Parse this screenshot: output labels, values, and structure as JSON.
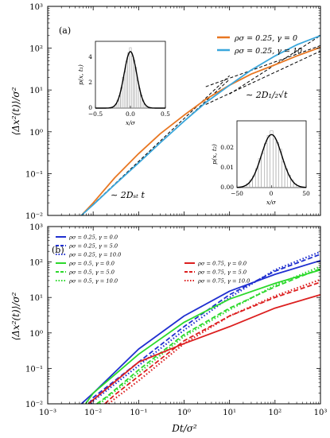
{
  "chart_data": [
    {
      "panel": "(a)",
      "type": "line",
      "xscale": "log",
      "yscale": "log",
      "xlim": [
        0.001,
        1000
      ],
      "ylim": [
        0.01,
        1000
      ],
      "ylabel": "⟨Δx²(t)⟩/σ²",
      "xticks": [
        "",
        "",
        "",
        "",
        "",
        "",
        ""
      ],
      "yticks": [
        "10⁻²",
        "10⁻¹",
        "10⁰",
        "10¹",
        "10²",
        "10³"
      ],
      "legend_position": "top-right",
      "series": [
        {
          "name": "ρσ = 0.25, γ = 0",
          "color": "#e87722",
          "style": "solid",
          "x": [
            0.0055,
            0.01,
            0.03,
            0.1,
            0.3,
            1,
            3,
            10,
            30,
            100,
            300,
            1000
          ],
          "y": [
            0.01,
            0.02,
            0.08,
            0.3,
            0.9,
            2.5,
            6,
            13,
            24,
            40,
            65,
            105
          ]
        },
        {
          "name": "ρσ = 0.25, γ = 10",
          "color": "#3aa7dc",
          "style": "solid",
          "x": [
            0.0055,
            0.01,
            0.03,
            0.1,
            0.3,
            1,
            3,
            10,
            30,
            100,
            300,
            1000
          ],
          "y": [
            0.01,
            0.018,
            0.055,
            0.18,
            0.55,
            1.8,
            5,
            13,
            30,
            65,
            120,
            200
          ]
        }
      ],
      "guides": [
        {
          "kind": "ballistic",
          "x": [
            0.0055,
            10
          ],
          "y": [
            0.01,
            22
          ]
        },
        {
          "kind": "ballistic",
          "x": [
            0.0055,
            10
          ],
          "y": [
            0.01,
            18
          ]
        },
        {
          "kind": "sqrt",
          "x": [
            3,
            1000
          ],
          "y": [
            12,
            115
          ]
        },
        {
          "kind": "sqrt",
          "x": [
            3,
            1000
          ],
          "y": [
            4.5,
            85
          ]
        },
        {
          "kind": "linear",
          "x": [
            10,
            1000
          ],
          "y": [
            8,
            200
          ]
        }
      ],
      "annotations": [
        "∼ 2D₁/₂√t",
        "∼ 2Dₛₜ t"
      ],
      "insets": [
        {
          "xlabel": "x/σ",
          "ylabel": "p(x, t₁)",
          "xlim": [
            -0.5,
            0.5
          ],
          "ylim": [
            0,
            5.2
          ],
          "xticks": [
            "−0.5",
            "0.0",
            "0.5"
          ],
          "yticks": [
            "0",
            "2",
            "4"
          ],
          "gaussian": {
            "mu": 0,
            "sigma": 0.09,
            "peak": 4.4
          }
        },
        {
          "xlabel": "x/σ",
          "ylabel": "p(x, t₂)",
          "xlim": [
            -50,
            50
          ],
          "ylim": [
            0,
            0.034
          ],
          "xticks": [
            "−50",
            "0",
            "50"
          ],
          "yticks": [
            "0.00",
            "0.01",
            "0.02"
          ],
          "gaussian": {
            "mu": 0,
            "sigma": 14.8,
            "peak": 0.027
          }
        }
      ]
    },
    {
      "panel": "(b)",
      "type": "line",
      "xscale": "log",
      "yscale": "log",
      "xlim": [
        0.001,
        1000
      ],
      "ylim": [
        0.01,
        1000
      ],
      "xlabel": "Dt/σ²",
      "ylabel": "⟨Δx²(t)⟩/σ²",
      "xticks": [
        "10⁻³",
        "10⁻²",
        "10⁻¹",
        "10⁰",
        "10¹",
        "10²",
        "10³"
      ],
      "yticks": [
        "10⁻²",
        "10⁻¹",
        "10⁰",
        "10¹",
        "10²",
        "10³"
      ],
      "legend_position": "top",
      "series": [
        {
          "name": "ρσ = 0.25, γ = 0.0",
          "color": "#1f2fd0",
          "style": "solid",
          "x": [
            0.0055,
            0.01,
            0.1,
            1,
            10,
            100,
            1000
          ],
          "y": [
            0.01,
            0.02,
            0.35,
            3,
            15,
            45,
            110
          ]
        },
        {
          "name": "ρσ = 0.25, γ = 5.0",
          "color": "#1f2fd0",
          "style": "dashed",
          "x": [
            0.008,
            0.01,
            0.1,
            1,
            10,
            100,
            1000
          ],
          "y": [
            0.01,
            0.015,
            0.15,
            1.5,
            12,
            55,
            165
          ]
        },
        {
          "name": "ρσ = 0.25, γ = 10.0",
          "color": "#1f2fd0",
          "style": "dotted",
          "x": [
            0.009,
            0.01,
            0.1,
            1,
            10,
            100,
            1000
          ],
          "y": [
            0.01,
            0.012,
            0.12,
            1.2,
            10,
            60,
            195
          ]
        },
        {
          "name": "ρσ = 0.5, γ = 0.0",
          "color": "#2bd92b",
          "style": "solid",
          "x": [
            0.0068,
            0.01,
            0.1,
            1,
            10,
            100,
            1000
          ],
          "y": [
            0.01,
            0.02,
            0.25,
            2,
            9,
            25,
            60
          ]
        },
        {
          "name": "ρσ = 0.5, γ = 5.0",
          "color": "#2bd92b",
          "style": "dashed",
          "x": [
            0.012,
            0.02,
            0.1,
            1,
            10,
            100,
            1000
          ],
          "y": [
            0.01,
            0.016,
            0.09,
            0.9,
            5,
            20,
            65
          ]
        },
        {
          "name": "ρσ = 0.5, γ = 10.0",
          "color": "#2bd92b",
          "style": "dotted",
          "x": [
            0.014,
            0.02,
            0.1,
            1,
            10,
            100,
            1000
          ],
          "y": [
            0.01,
            0.015,
            0.075,
            0.8,
            4.5,
            22,
            75
          ]
        },
        {
          "name": "ρσ = 0.75, γ = 0.0",
          "color": "#dc1f1f",
          "style": "solid",
          "x": [
            0.008,
            0.01,
            0.1,
            1,
            10,
            100,
            1000
          ],
          "y": [
            0.01,
            0.013,
            0.15,
            0.5,
            1.5,
            5,
            12
          ]
        },
        {
          "name": "ρσ = 0.75, γ = 5.0",
          "color": "#dc1f1f",
          "style": "dashed",
          "x": [
            0.018,
            0.03,
            0.1,
            1,
            10,
            100,
            1000
          ],
          "y": [
            0.01,
            0.018,
            0.06,
            0.6,
            3,
            10,
            27
          ]
        },
        {
          "name": "ρσ = 0.75, γ = 10.0",
          "color": "#dc1f1f",
          "style": "dotted",
          "x": [
            0.022,
            0.03,
            0.1,
            1,
            10,
            100,
            1000
          ],
          "y": [
            0.01,
            0.014,
            0.045,
            0.5,
            3,
            11,
            32
          ]
        }
      ]
    }
  ]
}
